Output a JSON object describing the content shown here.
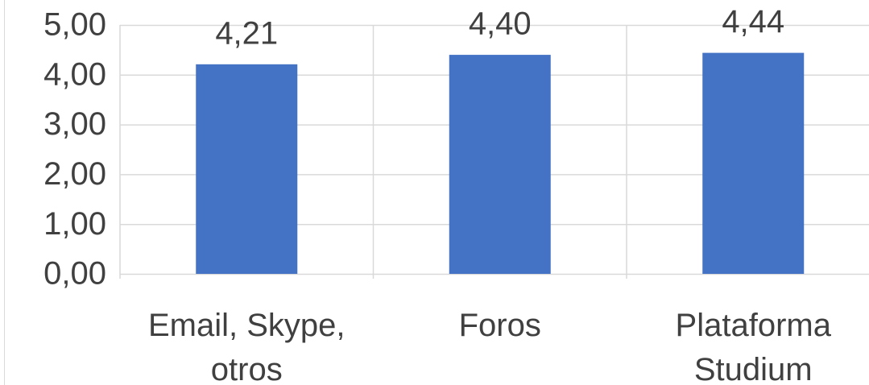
{
  "chart_data": {
    "type": "bar",
    "categories": [
      "Email, Skype, otros",
      "Foros",
      "Plataforma Studium"
    ],
    "values": [
      4.21,
      4.4,
      4.44
    ],
    "value_labels": [
      "4,21",
      "4,40",
      "4,44"
    ],
    "color": "#4472c4",
    "ylim": [
      0,
      5
    ],
    "yticks": [
      {
        "value": 0,
        "label": "0,00"
      },
      {
        "value": 1,
        "label": "1,00"
      },
      {
        "value": 2,
        "label": "2,00"
      },
      {
        "value": 3,
        "label": "3,00"
      },
      {
        "value": 4,
        "label": "4,00"
      },
      {
        "value": 5,
        "label": "5,00"
      }
    ],
    "grid": true
  }
}
